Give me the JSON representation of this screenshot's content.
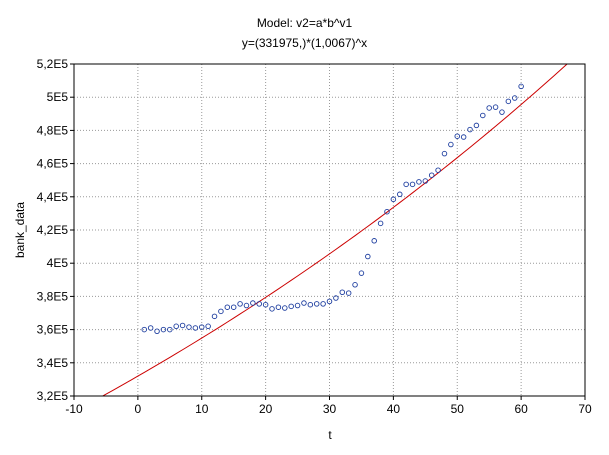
{
  "chart_data": {
    "type": "scatter",
    "title": "Model: v2=a*b^v1",
    "subtitle": "y=(331975,)*(1,0067)^x",
    "xlabel": "t",
    "ylabel": "bank_data",
    "xlim": [
      -10,
      70
    ],
    "ylim": [
      320000,
      520000
    ],
    "xticks": [
      -10,
      0,
      10,
      20,
      30,
      40,
      50,
      60,
      70
    ],
    "xtick_labels": [
      "-10",
      "0",
      "10",
      "20",
      "30",
      "40",
      "50",
      "60",
      "70"
    ],
    "yticks": [
      320000,
      340000,
      360000,
      380000,
      400000,
      420000,
      440000,
      460000,
      480000,
      500000,
      520000
    ],
    "ytick_labels": [
      "3,2E5",
      "3,4E5",
      "3,6E5",
      "3,8E5",
      "4E5",
      "4,2E5",
      "4,4E5",
      "4,6E5",
      "4,8E5",
      "5E5",
      "5,2E5"
    ],
    "grid": true,
    "colors": {
      "points": "#1f3fa0",
      "fit": "#cc0000",
      "grid": "#9a9a9a"
    },
    "x": [
      1,
      2,
      3,
      4,
      5,
      6,
      7,
      8,
      9,
      10,
      11,
      12,
      13,
      14,
      15,
      16,
      17,
      18,
      19,
      20,
      21,
      22,
      23,
      24,
      25,
      26,
      27,
      28,
      29,
      30,
      31,
      32,
      33,
      34,
      35,
      36,
      37,
      38,
      39,
      40,
      41,
      42,
      43,
      44,
      45,
      46,
      47,
      48,
      49,
      50,
      51,
      52,
      53,
      54,
      55,
      56,
      57,
      58,
      59,
      60
    ],
    "y": [
      360000,
      361000,
      359000,
      360000,
      360000,
      362000,
      362500,
      361500,
      361000,
      361500,
      362000,
      368000,
      371000,
      373500,
      373500,
      375500,
      374500,
      376000,
      375500,
      375000,
      372500,
      373500,
      373000,
      374000,
      374500,
      376000,
      375000,
      375500,
      375500,
      377000,
      379000,
      382500,
      382000,
      387000,
      394000,
      404000,
      413500,
      424000,
      431000,
      438500,
      441500,
      447500,
      447500,
      449000,
      449500,
      453000,
      456000,
      466000,
      471500,
      476500,
      476000,
      480500,
      483000,
      489000,
      493500,
      494000,
      491000,
      497500,
      499500,
      506500
    ],
    "fit": {
      "a": 331975,
      "b": 1.0067
    }
  }
}
